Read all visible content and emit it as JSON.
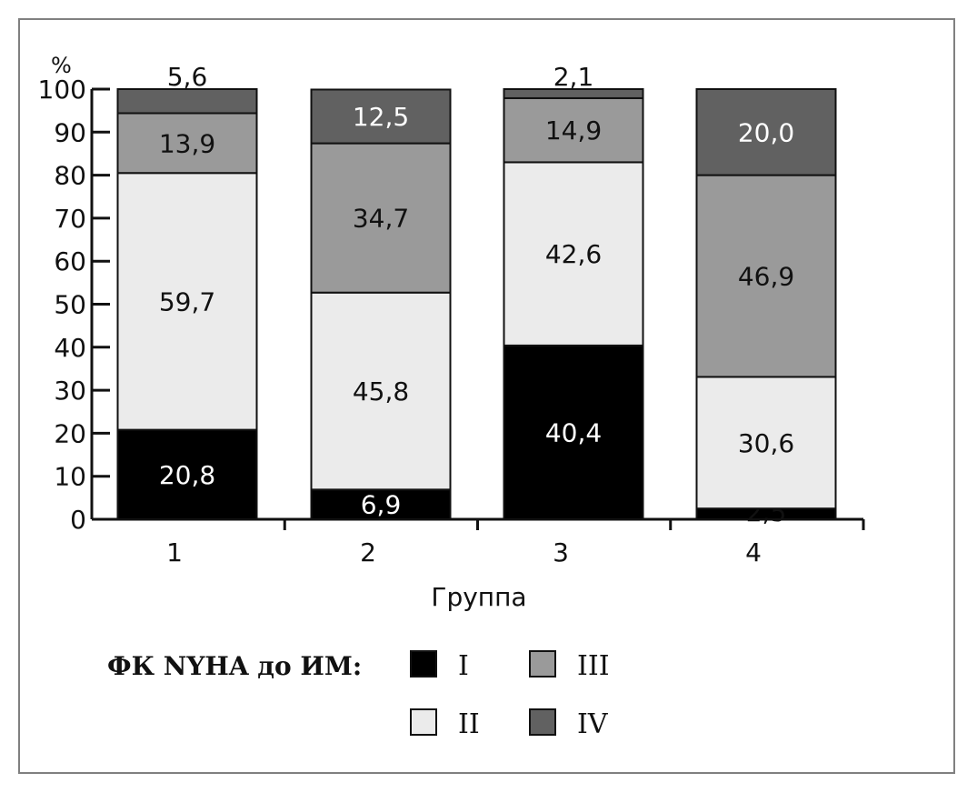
{
  "chart_data": {
    "type": "bar",
    "stacked": true,
    "y_unit": "%",
    "xlabel": "Группа",
    "ylabel": "",
    "ylim": [
      0,
      100
    ],
    "yticks": [
      0,
      10,
      20,
      30,
      40,
      50,
      60,
      70,
      80,
      90,
      100
    ],
    "categories": [
      "1",
      "2",
      "3",
      "4"
    ],
    "legend_title": "ФК NYHA до ИМ:",
    "legend_position": "bottom",
    "grid": false,
    "series": [
      {
        "name": "I",
        "color": "#000000",
        "label_color": "#ffffff",
        "values": [
          20.8,
          6.9,
          40.4,
          2.5
        ],
        "labels": [
          "20,8",
          "6,9",
          "40,4",
          "2,5"
        ]
      },
      {
        "name": "II",
        "color": "#ebebeb",
        "label_color": "#111111",
        "values": [
          59.7,
          45.8,
          42.6,
          30.6
        ],
        "labels": [
          "59,7",
          "45,8",
          "42,6",
          "30,6"
        ]
      },
      {
        "name": "III",
        "color": "#9a9a9a",
        "label_color": "#111111",
        "values": [
          13.9,
          34.7,
          14.9,
          46.9
        ],
        "labels": [
          "13,9",
          "34,7",
          "14,9",
          "46,9"
        ]
      },
      {
        "name": "IV",
        "color": "#616161",
        "label_color": "#ffffff",
        "values": [
          5.6,
          12.5,
          2.1,
          20.0
        ],
        "labels": [
          "5,6",
          "12,5",
          "2,1",
          "20,0"
        ]
      }
    ]
  }
}
